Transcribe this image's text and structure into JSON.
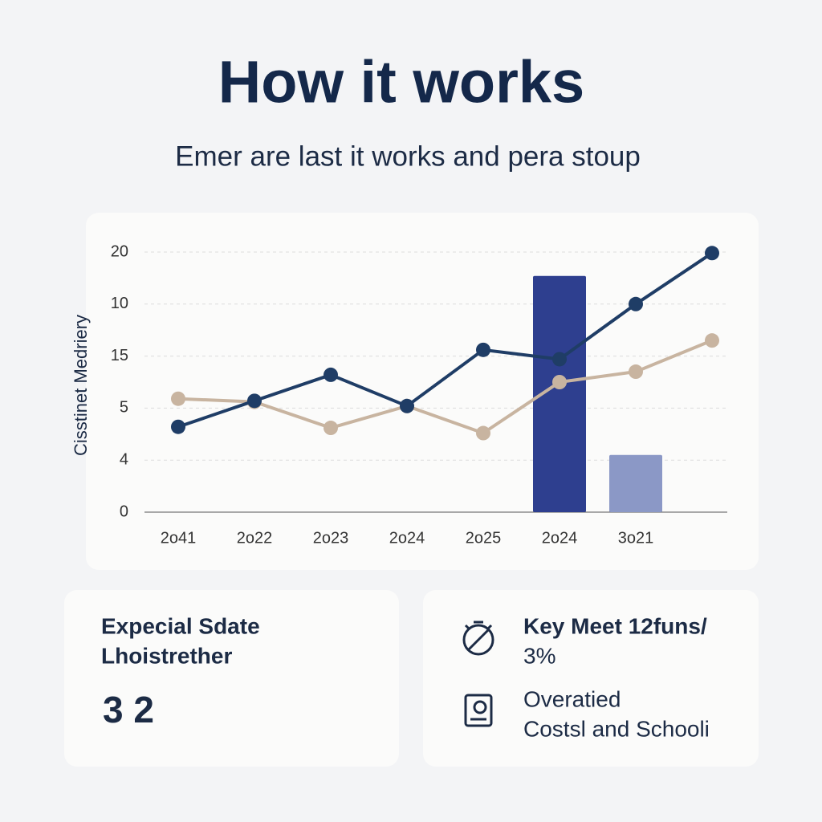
{
  "header": {
    "title": "How it works",
    "subtitle": "Emer are last it works and pera stoup"
  },
  "chart_data": {
    "type": "line",
    "ylabel": "Cisstinet Medriery",
    "categories": [
      "2o41",
      "2o22",
      "2o23",
      "2o24",
      "2o25",
      "2o24",
      "3o21",
      null
    ],
    "ylim": [
      0,
      25
    ],
    "yticks": [
      0,
      {
        "value": 5,
        "label": "4"
      },
      {
        "value": 10,
        "label": "5"
      },
      15,
      {
        "value": 20,
        "label": "10"
      },
      {
        "value": 25,
        "label": "20"
      }
    ],
    "grid": true,
    "series": [
      {
        "type": "bar",
        "color": "#2e3f8f",
        "values": [
          null,
          null,
          null,
          null,
          null,
          22.7,
          null,
          null
        ]
      },
      {
        "type": "bar",
        "color": "#8b98c6",
        "values": [
          null,
          null,
          null,
          null,
          null,
          null,
          5.5,
          null
        ]
      },
      {
        "type": "line",
        "color": "#c8b4a0",
        "values": [
          10.9,
          10.6,
          8.1,
          10.2,
          7.6,
          12.5,
          13.5,
          16.5
        ]
      },
      {
        "type": "line",
        "color": "#1f3d66",
        "values": [
          8.2,
          10.7,
          13.2,
          10.2,
          15.6,
          14.7,
          20,
          24.9
        ]
      }
    ]
  },
  "cards": [
    {
      "title": [
        "Expecial Sdate",
        "Lhoistrether"
      ],
      "value": "3 2"
    },
    {
      "items": [
        {
          "lines": [
            "Key Meet 12funs/",
            "3%"
          ]
        },
        {
          "lines": [
            "Overatied",
            "Costsl and Schooli"
          ]
        }
      ]
    }
  ]
}
